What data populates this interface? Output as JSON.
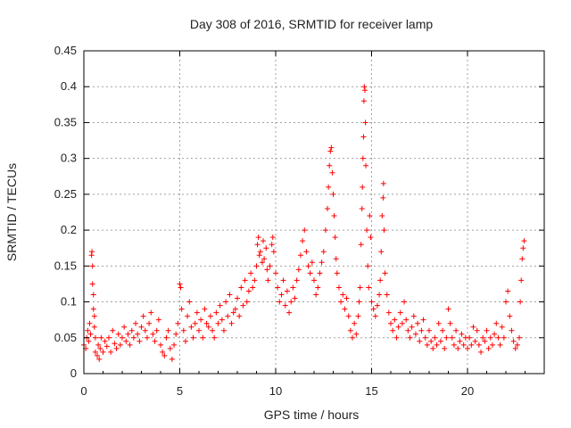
{
  "chart_data": {
    "type": "scatter",
    "title": "Day 308 of 2016, SRMTID for receiver lamp",
    "xlabel": "GPS time / hours",
    "ylabel": "SRMTID / TECUs",
    "xlim": [
      0,
      24
    ],
    "ylim": [
      0,
      0.45
    ],
    "xticks": [
      0,
      5,
      10,
      15,
      20
    ],
    "xtick_labels": [
      "0",
      "5",
      "10",
      "15",
      "20"
    ],
    "yticks": [
      0,
      0.05,
      0.1,
      0.15,
      0.2,
      0.25,
      0.3,
      0.35,
      0.4,
      0.45
    ],
    "ytick_labels": [
      "0",
      "0.05",
      "0.1",
      "0.15",
      "0.2",
      "0.25",
      "0.3",
      "0.35",
      "0.4",
      "0.45"
    ],
    "grid": true,
    "marker": "+",
    "color": "#ff0000",
    "series": [
      {
        "name": "SRMTID",
        "points": [
          [
            0.0,
            0.04
          ],
          [
            0.1,
            0.035
          ],
          [
            0.15,
            0.05
          ],
          [
            0.2,
            0.06
          ],
          [
            0.25,
            0.045
          ],
          [
            0.3,
            0.07
          ],
          [
            0.35,
            0.055
          ],
          [
            0.4,
            0.165
          ],
          [
            0.42,
            0.17
          ],
          [
            0.45,
            0.15
          ],
          [
            0.45,
            0.125
          ],
          [
            0.5,
            0.11
          ],
          [
            0.5,
            0.09
          ],
          [
            0.55,
            0.08
          ],
          [
            0.55,
            0.065
          ],
          [
            0.6,
            0.05
          ],
          [
            0.6,
            0.03
          ],
          [
            0.7,
            0.025
          ],
          [
            0.75,
            0.04
          ],
          [
            0.8,
            0.02
          ],
          [
            0.85,
            0.035
          ],
          [
            0.9,
            0.05
          ],
          [
            1.0,
            0.03
          ],
          [
            1.1,
            0.045
          ],
          [
            1.2,
            0.038
          ],
          [
            1.3,
            0.05
          ],
          [
            1.4,
            0.03
          ],
          [
            1.5,
            0.06
          ],
          [
            1.6,
            0.042
          ],
          [
            1.7,
            0.035
          ],
          [
            1.8,
            0.055
          ],
          [
            1.9,
            0.04
          ],
          [
            2.0,
            0.05
          ],
          [
            2.1,
            0.065
          ],
          [
            2.2,
            0.045
          ],
          [
            2.3,
            0.055
          ],
          [
            2.4,
            0.04
          ],
          [
            2.5,
            0.06
          ],
          [
            2.6,
            0.05
          ],
          [
            2.7,
            0.07
          ],
          [
            2.8,
            0.055
          ],
          [
            2.9,
            0.045
          ],
          [
            3.0,
            0.065
          ],
          [
            3.1,
            0.08
          ],
          [
            3.2,
            0.06
          ],
          [
            3.3,
            0.05
          ],
          [
            3.4,
            0.07
          ],
          [
            3.5,
            0.085
          ],
          [
            3.6,
            0.055
          ],
          [
            3.7,
            0.045
          ],
          [
            3.8,
            0.06
          ],
          [
            3.9,
            0.075
          ],
          [
            4.0,
            0.04
          ],
          [
            4.1,
            0.03
          ],
          [
            4.2,
            0.025
          ],
          [
            4.3,
            0.05
          ],
          [
            4.4,
            0.06
          ],
          [
            4.5,
            0.035
          ],
          [
            4.6,
            0.02
          ],
          [
            4.7,
            0.04
          ],
          [
            4.8,
            0.055
          ],
          [
            4.9,
            0.07
          ],
          [
            5.0,
            0.125
          ],
          [
            5.05,
            0.12
          ],
          [
            5.1,
            0.09
          ],
          [
            5.2,
            0.06
          ],
          [
            5.3,
            0.045
          ],
          [
            5.4,
            0.08
          ],
          [
            5.5,
            0.1
          ],
          [
            5.6,
            0.065
          ],
          [
            5.7,
            0.05
          ],
          [
            5.8,
            0.07
          ],
          [
            5.9,
            0.085
          ],
          [
            6.0,
            0.06
          ],
          [
            6.1,
            0.075
          ],
          [
            6.2,
            0.05
          ],
          [
            6.3,
            0.09
          ],
          [
            6.4,
            0.07
          ],
          [
            6.5,
            0.065
          ],
          [
            6.6,
            0.08
          ],
          [
            6.7,
            0.06
          ],
          [
            6.8,
            0.05
          ],
          [
            6.9,
            0.085
          ],
          [
            7.0,
            0.07
          ],
          [
            7.1,
            0.095
          ],
          [
            7.2,
            0.075
          ],
          [
            7.3,
            0.06
          ],
          [
            7.4,
            0.1
          ],
          [
            7.5,
            0.08
          ],
          [
            7.6,
            0.11
          ],
          [
            7.7,
            0.07
          ],
          [
            7.8,
            0.085
          ],
          [
            7.9,
            0.09
          ],
          [
            8.0,
            0.105
          ],
          [
            8.1,
            0.08
          ],
          [
            8.2,
            0.12
          ],
          [
            8.3,
            0.095
          ],
          [
            8.4,
            0.13
          ],
          [
            8.5,
            0.1
          ],
          [
            8.6,
            0.115
          ],
          [
            8.7,
            0.14
          ],
          [
            8.8,
            0.12
          ],
          [
            8.9,
            0.13
          ],
          [
            9.0,
            0.15
          ],
          [
            9.05,
            0.18
          ],
          [
            9.1,
            0.19
          ],
          [
            9.15,
            0.165
          ],
          [
            9.2,
            0.17
          ],
          [
            9.3,
            0.155
          ],
          [
            9.35,
            0.185
          ],
          [
            9.4,
            0.16
          ],
          [
            9.5,
            0.175
          ],
          [
            9.55,
            0.145
          ],
          [
            9.6,
            0.13
          ],
          [
            9.7,
            0.15
          ],
          [
            9.8,
            0.18
          ],
          [
            9.85,
            0.19
          ],
          [
            9.9,
            0.17
          ],
          [
            10.0,
            0.14
          ],
          [
            10.1,
            0.12
          ],
          [
            10.2,
            0.1
          ],
          [
            10.3,
            0.11
          ],
          [
            10.4,
            0.13
          ],
          [
            10.5,
            0.095
          ],
          [
            10.6,
            0.115
          ],
          [
            10.7,
            0.085
          ],
          [
            10.8,
            0.1
          ],
          [
            10.9,
            0.12
          ],
          [
            11.0,
            0.105
          ],
          [
            11.1,
            0.13
          ],
          [
            11.2,
            0.145
          ],
          [
            11.3,
            0.165
          ],
          [
            11.4,
            0.185
          ],
          [
            11.5,
            0.2
          ],
          [
            11.6,
            0.17
          ],
          [
            11.7,
            0.15
          ],
          [
            11.8,
            0.14
          ],
          [
            11.9,
            0.155
          ],
          [
            12.0,
            0.13
          ],
          [
            12.1,
            0.11
          ],
          [
            12.2,
            0.12
          ],
          [
            12.3,
            0.14
          ],
          [
            12.4,
            0.155
          ],
          [
            12.5,
            0.17
          ],
          [
            12.6,
            0.2
          ],
          [
            12.7,
            0.23
          ],
          [
            12.75,
            0.26
          ],
          [
            12.8,
            0.29
          ],
          [
            12.85,
            0.31
          ],
          [
            12.9,
            0.315
          ],
          [
            12.95,
            0.28
          ],
          [
            13.0,
            0.25
          ],
          [
            13.05,
            0.22
          ],
          [
            13.1,
            0.19
          ],
          [
            13.15,
            0.16
          ],
          [
            13.2,
            0.14
          ],
          [
            13.3,
            0.12
          ],
          [
            13.4,
            0.1
          ],
          [
            13.5,
            0.11
          ],
          [
            13.6,
            0.09
          ],
          [
            13.7,
            0.105
          ],
          [
            13.8,
            0.08
          ],
          [
            13.9,
            0.06
          ],
          [
            14.0,
            0.05
          ],
          [
            14.1,
            0.07
          ],
          [
            14.2,
            0.055
          ],
          [
            14.3,
            0.08
          ],
          [
            14.35,
            0.1
          ],
          [
            14.4,
            0.12
          ],
          [
            14.45,
            0.18
          ],
          [
            14.5,
            0.23
          ],
          [
            14.52,
            0.26
          ],
          [
            14.55,
            0.3
          ],
          [
            14.58,
            0.33
          ],
          [
            14.6,
            0.38
          ],
          [
            14.62,
            0.4
          ],
          [
            14.65,
            0.395
          ],
          [
            14.68,
            0.35
          ],
          [
            14.7,
            0.29
          ],
          [
            14.75,
            0.2
          ],
          [
            14.8,
            0.15
          ],
          [
            14.85,
            0.12
          ],
          [
            14.9,
            0.22
          ],
          [
            14.95,
            0.19
          ],
          [
            15.0,
            0.1
          ],
          [
            15.1,
            0.09
          ],
          [
            15.2,
            0.08
          ],
          [
            15.3,
            0.095
          ],
          [
            15.4,
            0.11
          ],
          [
            15.45,
            0.13
          ],
          [
            15.5,
            0.17
          ],
          [
            15.55,
            0.22
          ],
          [
            15.6,
            0.245
          ],
          [
            15.62,
            0.265
          ],
          [
            15.65,
            0.2
          ],
          [
            15.7,
            0.14
          ],
          [
            15.8,
            0.11
          ],
          [
            15.9,
            0.085
          ],
          [
            16.0,
            0.07
          ],
          [
            16.1,
            0.06
          ],
          [
            16.2,
            0.075
          ],
          [
            16.3,
            0.05
          ],
          [
            16.4,
            0.065
          ],
          [
            16.5,
            0.085
          ],
          [
            16.6,
            0.07
          ],
          [
            16.7,
            0.1
          ],
          [
            16.8,
            0.075
          ],
          [
            16.9,
            0.06
          ],
          [
            17.0,
            0.05
          ],
          [
            17.1,
            0.065
          ],
          [
            17.2,
            0.08
          ],
          [
            17.3,
            0.055
          ],
          [
            17.4,
            0.07
          ],
          [
            17.5,
            0.045
          ],
          [
            17.6,
            0.06
          ],
          [
            17.7,
            0.075
          ],
          [
            17.8,
            0.05
          ],
          [
            17.9,
            0.04
          ],
          [
            18.0,
            0.06
          ],
          [
            18.1,
            0.045
          ],
          [
            18.2,
            0.035
          ],
          [
            18.3,
            0.05
          ],
          [
            18.4,
            0.04
          ],
          [
            18.5,
            0.07
          ],
          [
            18.6,
            0.045
          ],
          [
            18.7,
            0.06
          ],
          [
            18.8,
            0.035
          ],
          [
            18.9,
            0.05
          ],
          [
            19.0,
            0.09
          ],
          [
            19.1,
            0.07
          ],
          [
            19.2,
            0.05
          ],
          [
            19.3,
            0.04
          ],
          [
            19.4,
            0.06
          ],
          [
            19.5,
            0.035
          ],
          [
            19.6,
            0.045
          ],
          [
            19.7,
            0.055
          ],
          [
            19.8,
            0.04
          ],
          [
            19.9,
            0.05
          ],
          [
            20.0,
            0.035
          ],
          [
            20.1,
            0.05
          ],
          [
            20.2,
            0.04
          ],
          [
            20.3,
            0.065
          ],
          [
            20.4,
            0.045
          ],
          [
            20.5,
            0.06
          ],
          [
            20.6,
            0.04
          ],
          [
            20.7,
            0.03
          ],
          [
            20.8,
            0.05
          ],
          [
            20.9,
            0.045
          ],
          [
            21.0,
            0.06
          ],
          [
            21.1,
            0.035
          ],
          [
            21.2,
            0.05
          ],
          [
            21.3,
            0.04
          ],
          [
            21.4,
            0.055
          ],
          [
            21.5,
            0.07
          ],
          [
            21.6,
            0.05
          ],
          [
            21.7,
            0.04
          ],
          [
            21.8,
            0.065
          ],
          [
            21.9,
            0.05
          ],
          [
            22.0,
            0.1
          ],
          [
            22.1,
            0.115
          ],
          [
            22.2,
            0.08
          ],
          [
            22.3,
            0.06
          ],
          [
            22.4,
            0.045
          ],
          [
            22.5,
            0.035
          ],
          [
            22.6,
            0.04
          ],
          [
            22.7,
            0.05
          ],
          [
            22.75,
            0.1
          ],
          [
            22.8,
            0.13
          ],
          [
            22.85,
            0.16
          ],
          [
            22.9,
            0.175
          ],
          [
            22.95,
            0.185
          ]
        ]
      }
    ]
  }
}
